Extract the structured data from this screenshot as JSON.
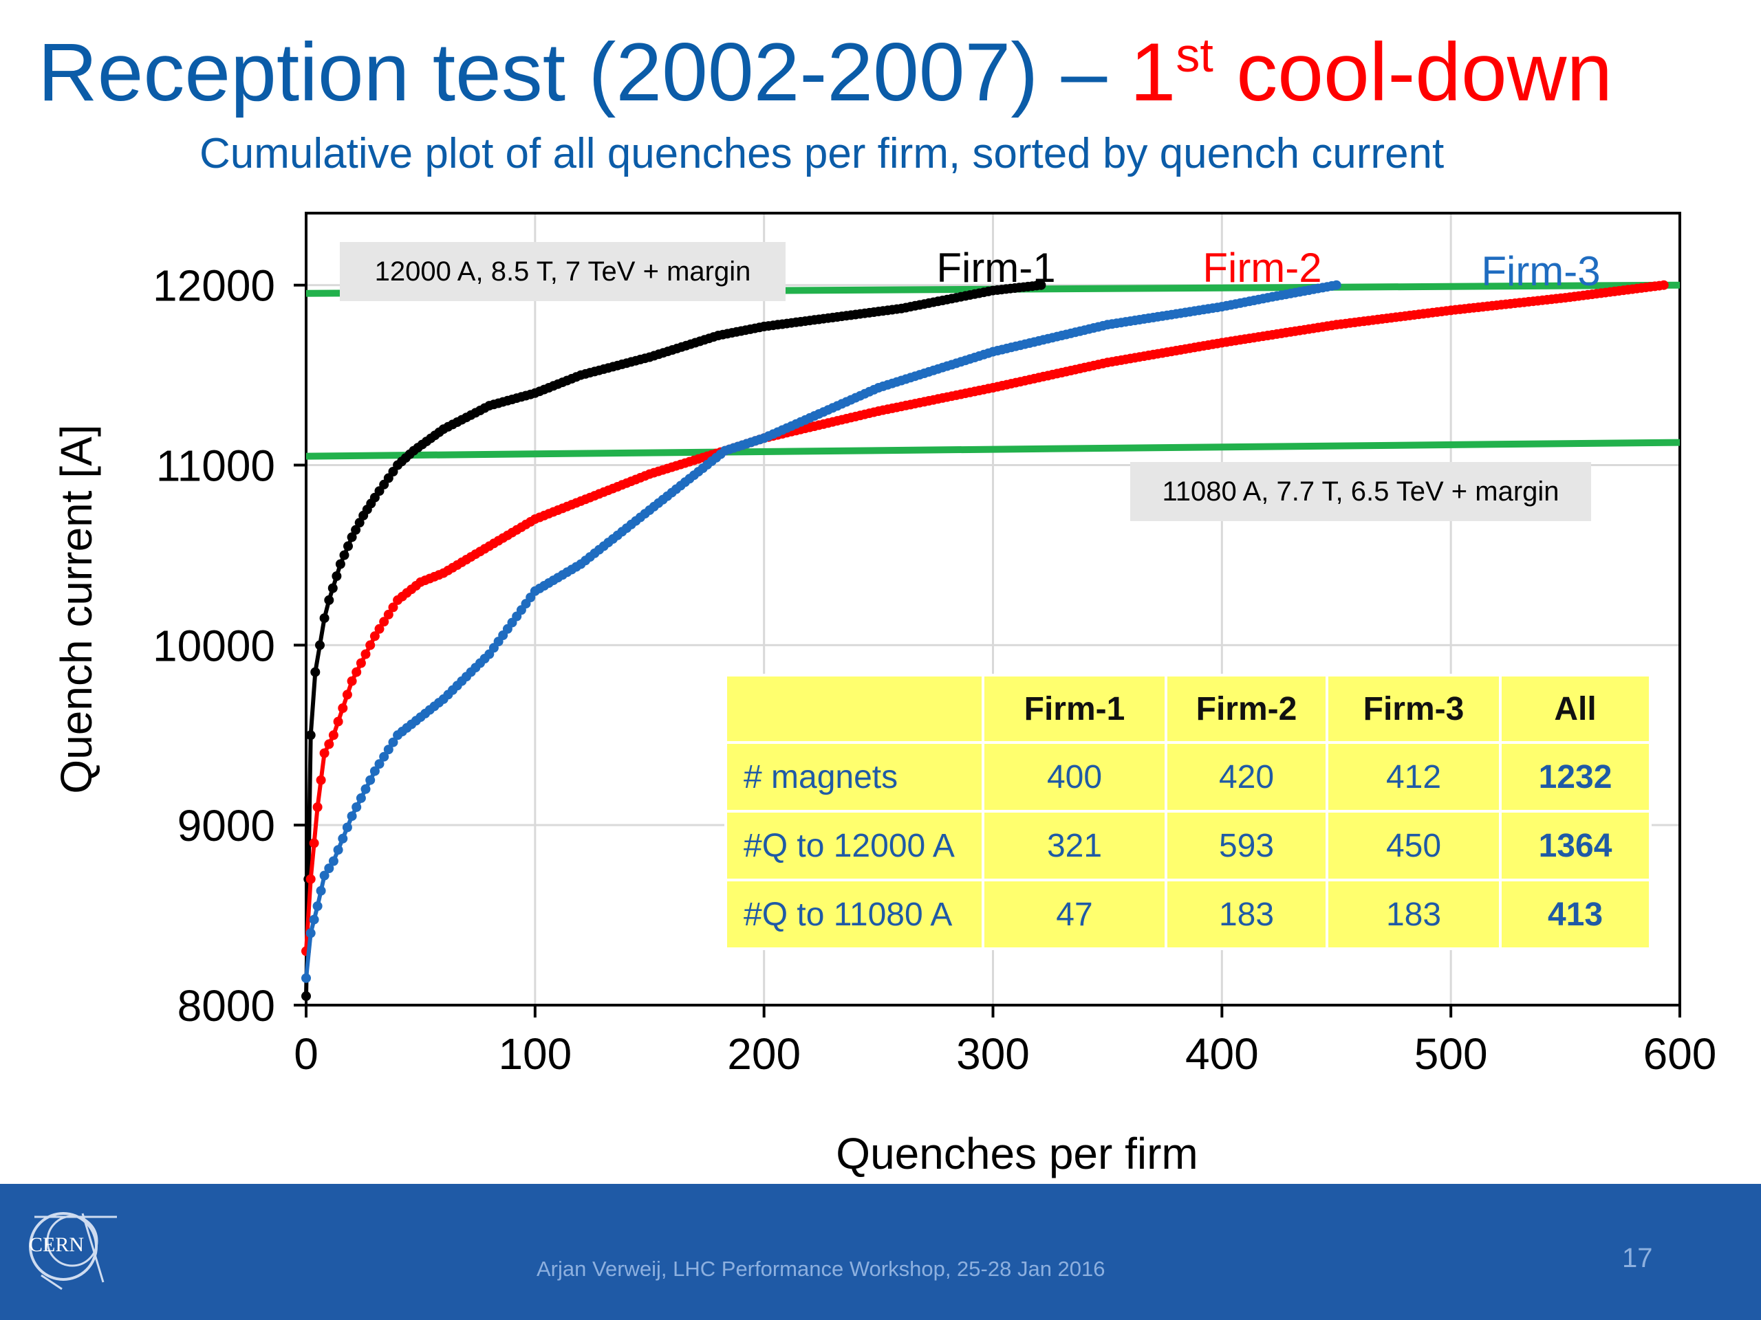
{
  "slide": {
    "title_part1": "Reception test (2002-2007) – ",
    "title_part2": "1",
    "title_sup": "st",
    "title_part3": " cool-down",
    "subtitle": "Cumulative plot of all quenches per firm, sorted by quench current",
    "footer_text": "Arjan Verweij, LHC Performance Workshop, 25-28 Jan 2016",
    "page_number": "17",
    "logo_text": "CERN"
  },
  "summary_table": {
    "headers": [
      "",
      "Firm-1",
      "Firm-2",
      "Firm-3",
      "All"
    ],
    "rows": [
      {
        "label": "# magnets",
        "values": [
          "400",
          "420",
          "412",
          "1232"
        ]
      },
      {
        "label": "#Q to 12000 A",
        "values": [
          "321",
          "593",
          "450",
          "1364"
        ]
      },
      {
        "label": "#Q to 11080 A",
        "values": [
          "47",
          "183",
          "183",
          "413"
        ]
      }
    ]
  },
  "chart_data": {
    "type": "scatter",
    "xlabel": "Quenches per firm",
    "ylabel": "Quench current [A]",
    "xlim": [
      0,
      600
    ],
    "ylim": [
      8000,
      12400
    ],
    "xticks": [
      "0",
      "100",
      "200",
      "300",
      "400",
      "500",
      "600"
    ],
    "yticks": [
      "8000",
      "9000",
      "10000",
      "11000",
      "12000"
    ],
    "grid": true,
    "series": [
      {
        "name": "Firm-1",
        "color": "#000000",
        "x": [
          0,
          1,
          2,
          4,
          6,
          8,
          10,
          15,
          20,
          25,
          30,
          40,
          47,
          60,
          80,
          100,
          120,
          150,
          180,
          200,
          230,
          260,
          280,
          300,
          321
        ],
        "y": [
          8050,
          8700,
          9500,
          9850,
          10000,
          10150,
          10250,
          10450,
          10600,
          10720,
          10820,
          11000,
          11080,
          11200,
          11330,
          11400,
          11500,
          11600,
          11720,
          11770,
          11820,
          11870,
          11920,
          11970,
          12000
        ]
      },
      {
        "name": "Firm-2",
        "color": "#ff0000",
        "x": [
          0,
          2,
          5,
          8,
          12,
          20,
          30,
          40,
          50,
          60,
          80,
          100,
          120,
          150,
          183,
          200,
          250,
          300,
          350,
          400,
          450,
          500,
          550,
          593
        ],
        "y": [
          8300,
          8700,
          9100,
          9400,
          9500,
          9800,
          10050,
          10250,
          10350,
          10400,
          10550,
          10700,
          10800,
          10950,
          11080,
          11150,
          11300,
          11430,
          11570,
          11680,
          11780,
          11860,
          11930,
          12000
        ]
      },
      {
        "name": "Firm-3",
        "color": "#1f6cc0",
        "x": [
          0,
          2,
          5,
          8,
          12,
          20,
          30,
          40,
          50,
          60,
          80,
          100,
          120,
          150,
          183,
          200,
          250,
          300,
          350,
          400,
          420,
          450
        ],
        "y": [
          8150,
          8400,
          8550,
          8720,
          8800,
          9050,
          9300,
          9500,
          9600,
          9700,
          9950,
          10300,
          10450,
          10750,
          11080,
          11150,
          11430,
          11630,
          11780,
          11880,
          11930,
          12000
        ]
      }
    ],
    "reference_lines": [
      {
        "value": 12000,
        "label": "12000 A, 8.5 T, 7 TeV + margin",
        "color": "#22b14c"
      },
      {
        "value": 11080,
        "label": "11080 A, 7.7 T, 6.5 TeV + margin",
        "color": "#22b14c"
      }
    ]
  }
}
